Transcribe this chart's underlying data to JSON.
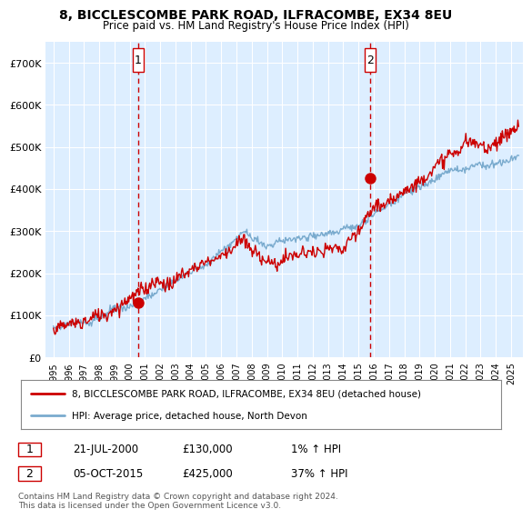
{
  "title_line1": "8, BICCLESCOMBE PARK ROAD, ILFRACOMBE, EX34 8EU",
  "title_line2": "Price paid vs. HM Land Registry's House Price Index (HPI)",
  "ylim": [
    0,
    750000
  ],
  "yticks": [
    0,
    100000,
    200000,
    300000,
    400000,
    500000,
    600000,
    700000
  ],
  "ytick_labels": [
    "£0",
    "£100K",
    "£200K",
    "£300K",
    "£400K",
    "£500K",
    "£600K",
    "£700K"
  ],
  "sale1_year": 2000.55,
  "sale1_price": 130000,
  "sale1_label": "1",
  "sale1_date": "21-JUL-2000",
  "sale1_price_str": "£130,000",
  "sale1_hpi": "1% ↑ HPI",
  "sale2_year": 2015.75,
  "sale2_price": 425000,
  "sale2_label": "2",
  "sale2_date": "05-OCT-2015",
  "sale2_price_str": "£425,000",
  "sale2_hpi": "37% ↑ HPI",
  "vline1_x": 2000.55,
  "vline2_x": 2015.75,
  "line_color_red": "#cc0000",
  "line_color_blue": "#7aabce",
  "vline_color": "#cc0000",
  "background_color": "#ffffff",
  "chart_bg_color": "#ddeeff",
  "grid_color": "#ffffff",
  "legend_label1": "8, BICCLESCOMBE PARK ROAD, ILFRACOMBE, EX34 8EU (detached house)",
  "legend_label2": "HPI: Average price, detached house, North Devon",
  "footer": "Contains HM Land Registry data © Crown copyright and database right 2024.\nThis data is licensed under the Open Government Licence v3.0.",
  "xlim_left": 1994.5,
  "xlim_right": 2025.8
}
